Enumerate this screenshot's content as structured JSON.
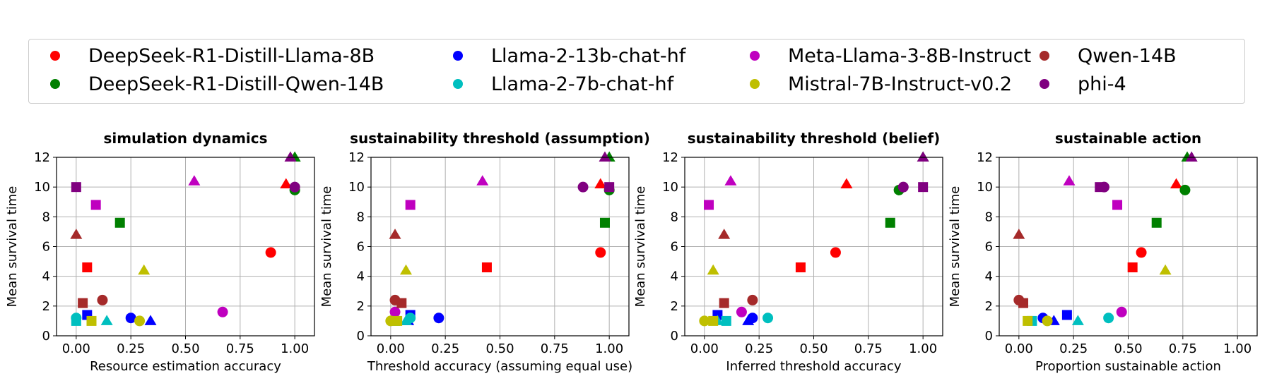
{
  "legend": {
    "items": [
      {
        "label": "DeepSeek-R1-Distill-Llama-8B",
        "color": "#ff0000"
      },
      {
        "label": "DeepSeek-R1-Distill-Qwen-14B",
        "color": "#008000"
      },
      {
        "label": "Llama-2-13b-chat-hf",
        "color": "#0000ff"
      },
      {
        "label": "Llama-2-7b-chat-hf",
        "color": "#00bfbf"
      },
      {
        "label": "Meta-Llama-3-8B-Instruct",
        "color": "#bf00bf"
      },
      {
        "label": "Mistral-7B-Instruct-v0.2",
        "color": "#bfbf00"
      },
      {
        "label": "Qwen-14B",
        "color": "#a52a2a"
      },
      {
        "label": "phi-4",
        "color": "#800080"
      }
    ]
  },
  "chart_data": [
    {
      "type": "scatter",
      "title": "simulation dynamics",
      "xlabel": "Resource estimation accuracy",
      "ylabel": "Mean survival time",
      "xlim": [
        -0.09,
        1.09
      ],
      "ylim": [
        0,
        12
      ],
      "xticks": [
        "0.00",
        "0.25",
        "0.50",
        "0.75",
        "1.00"
      ],
      "yticks": [
        "0",
        "2",
        "4",
        "6",
        "8",
        "10",
        "12"
      ],
      "grid": true,
      "points": [
        {
          "model": "DeepSeek-R1-Distill-Llama-8B",
          "marker": "circle",
          "x": 0.89,
          "y": 5.6
        },
        {
          "model": "DeepSeek-R1-Distill-Llama-8B",
          "marker": "square",
          "x": 0.05,
          "y": 4.6
        },
        {
          "model": "DeepSeek-R1-Distill-Llama-8B",
          "marker": "triangle",
          "x": 0.96,
          "y": 10.2
        },
        {
          "model": "DeepSeek-R1-Distill-Qwen-14B",
          "marker": "circle",
          "x": 1.0,
          "y": 9.8
        },
        {
          "model": "DeepSeek-R1-Distill-Qwen-14B",
          "marker": "square",
          "x": 0.2,
          "y": 7.6
        },
        {
          "model": "DeepSeek-R1-Distill-Qwen-14B",
          "marker": "triangle",
          "x": 1.0,
          "y": 12.0
        },
        {
          "model": "Llama-2-13b-chat-hf",
          "marker": "circle",
          "x": 0.25,
          "y": 1.2
        },
        {
          "model": "Llama-2-13b-chat-hf",
          "marker": "square",
          "x": 0.05,
          "y": 1.4
        },
        {
          "model": "Llama-2-13b-chat-hf",
          "marker": "triangle",
          "x": 0.34,
          "y": 1.0
        },
        {
          "model": "Llama-2-7b-chat-hf",
          "marker": "circle",
          "x": 0.0,
          "y": 1.2
        },
        {
          "model": "Llama-2-7b-chat-hf",
          "marker": "square",
          "x": 0.0,
          "y": 1.0
        },
        {
          "model": "Llama-2-7b-chat-hf",
          "marker": "triangle",
          "x": 0.14,
          "y": 1.0
        },
        {
          "model": "Meta-Llama-3-8B-Instruct",
          "marker": "circle",
          "x": 0.67,
          "y": 1.6
        },
        {
          "model": "Meta-Llama-3-8B-Instruct",
          "marker": "square",
          "x": 0.09,
          "y": 8.8
        },
        {
          "model": "Meta-Llama-3-8B-Instruct",
          "marker": "triangle",
          "x": 0.54,
          "y": 10.4
        },
        {
          "model": "Mistral-7B-Instruct-v0.2",
          "marker": "circle",
          "x": 0.29,
          "y": 1.0
        },
        {
          "model": "Mistral-7B-Instruct-v0.2",
          "marker": "square",
          "x": 0.07,
          "y": 1.0
        },
        {
          "model": "Mistral-7B-Instruct-v0.2",
          "marker": "triangle",
          "x": 0.31,
          "y": 4.4
        },
        {
          "model": "Qwen-14B",
          "marker": "circle",
          "x": 0.12,
          "y": 2.4
        },
        {
          "model": "Qwen-14B",
          "marker": "square",
          "x": 0.03,
          "y": 2.2
        },
        {
          "model": "Qwen-14B",
          "marker": "triangle",
          "x": 0.0,
          "y": 6.8
        },
        {
          "model": "phi-4",
          "marker": "circle",
          "x": 1.0,
          "y": 10.0
        },
        {
          "model": "phi-4",
          "marker": "square",
          "x": 0.0,
          "y": 10.0
        },
        {
          "model": "phi-4",
          "marker": "triangle",
          "x": 0.98,
          "y": 12.0
        }
      ]
    },
    {
      "type": "scatter",
      "title": "sustainability threshold (assumption)",
      "xlabel": "Threshold accuracy (assuming equal use)",
      "ylabel": "Mean survival time",
      "xlim": [
        -0.09,
        1.09
      ],
      "ylim": [
        0,
        12
      ],
      "xticks": [
        "0.00",
        "0.25",
        "0.50",
        "0.75",
        "1.00"
      ],
      "yticks": [
        "0",
        "2",
        "4",
        "6",
        "8",
        "10",
        "12"
      ],
      "grid": true,
      "points": [
        {
          "model": "DeepSeek-R1-Distill-Llama-8B",
          "marker": "circle",
          "x": 0.96,
          "y": 5.6
        },
        {
          "model": "DeepSeek-R1-Distill-Llama-8B",
          "marker": "square",
          "x": 0.44,
          "y": 4.6
        },
        {
          "model": "DeepSeek-R1-Distill-Llama-8B",
          "marker": "triangle",
          "x": 0.96,
          "y": 10.2
        },
        {
          "model": "DeepSeek-R1-Distill-Qwen-14B",
          "marker": "circle",
          "x": 1.0,
          "y": 9.8
        },
        {
          "model": "DeepSeek-R1-Distill-Qwen-14B",
          "marker": "square",
          "x": 0.98,
          "y": 7.6
        },
        {
          "model": "DeepSeek-R1-Distill-Qwen-14B",
          "marker": "triangle",
          "x": 1.0,
          "y": 12.0
        },
        {
          "model": "Llama-2-13b-chat-hf",
          "marker": "circle",
          "x": 0.22,
          "y": 1.2
        },
        {
          "model": "Llama-2-13b-chat-hf",
          "marker": "square",
          "x": 0.09,
          "y": 1.4
        },
        {
          "model": "Llama-2-13b-chat-hf",
          "marker": "triangle",
          "x": 0.08,
          "y": 1.0
        },
        {
          "model": "Llama-2-7b-chat-hf",
          "marker": "circle",
          "x": 0.09,
          "y": 1.2
        },
        {
          "model": "Llama-2-7b-chat-hf",
          "marker": "square",
          "x": 0.02,
          "y": 1.0
        },
        {
          "model": "Llama-2-7b-chat-hf",
          "marker": "triangle",
          "x": 0.07,
          "y": 1.0
        },
        {
          "model": "Meta-Llama-3-8B-Instruct",
          "marker": "circle",
          "x": 0.02,
          "y": 1.6
        },
        {
          "model": "Meta-Llama-3-8B-Instruct",
          "marker": "square",
          "x": 0.09,
          "y": 8.8
        },
        {
          "model": "Meta-Llama-3-8B-Instruct",
          "marker": "triangle",
          "x": 0.42,
          "y": 10.4
        },
        {
          "model": "Mistral-7B-Instruct-v0.2",
          "marker": "circle",
          "x": 0.0,
          "y": 1.0
        },
        {
          "model": "Mistral-7B-Instruct-v0.2",
          "marker": "square",
          "x": 0.03,
          "y": 1.0
        },
        {
          "model": "Mistral-7B-Instruct-v0.2",
          "marker": "triangle",
          "x": 0.07,
          "y": 4.4
        },
        {
          "model": "Qwen-14B",
          "marker": "circle",
          "x": 0.02,
          "y": 2.4
        },
        {
          "model": "Qwen-14B",
          "marker": "square",
          "x": 0.05,
          "y": 2.2
        },
        {
          "model": "Qwen-14B",
          "marker": "triangle",
          "x": 0.02,
          "y": 6.8
        },
        {
          "model": "phi-4",
          "marker": "circle",
          "x": 0.88,
          "y": 10.0
        },
        {
          "model": "phi-4",
          "marker": "square",
          "x": 1.0,
          "y": 10.0
        },
        {
          "model": "phi-4",
          "marker": "triangle",
          "x": 0.98,
          "y": 12.0
        }
      ]
    },
    {
      "type": "scatter",
      "title": "sustainability threshold (belief)",
      "xlabel": "Inferred threshold accuracy",
      "ylabel": "Mean survival time",
      "xlim": [
        -0.09,
        1.09
      ],
      "ylim": [
        0,
        12
      ],
      "xticks": [
        "0.00",
        "0.25",
        "0.50",
        "0.75",
        "1.00"
      ],
      "yticks": [
        "0",
        "2",
        "4",
        "6",
        "8",
        "10",
        "12"
      ],
      "grid": true,
      "points": [
        {
          "model": "DeepSeek-R1-Distill-Llama-8B",
          "marker": "circle",
          "x": 0.6,
          "y": 5.6
        },
        {
          "model": "DeepSeek-R1-Distill-Llama-8B",
          "marker": "square",
          "x": 0.44,
          "y": 4.6
        },
        {
          "model": "DeepSeek-R1-Distill-Llama-8B",
          "marker": "triangle",
          "x": 0.65,
          "y": 10.2
        },
        {
          "model": "DeepSeek-R1-Distill-Qwen-14B",
          "marker": "circle",
          "x": 0.89,
          "y": 9.8
        },
        {
          "model": "DeepSeek-R1-Distill-Qwen-14B",
          "marker": "square",
          "x": 0.85,
          "y": 7.6
        },
        {
          "model": "DeepSeek-R1-Distill-Qwen-14B",
          "marker": "triangle",
          "x": 1.0,
          "y": 12.0
        },
        {
          "model": "Llama-2-13b-chat-hf",
          "marker": "circle",
          "x": 0.22,
          "y": 1.2
        },
        {
          "model": "Llama-2-13b-chat-hf",
          "marker": "square",
          "x": 0.06,
          "y": 1.4
        },
        {
          "model": "Llama-2-13b-chat-hf",
          "marker": "triangle",
          "x": 0.2,
          "y": 1.0
        },
        {
          "model": "Llama-2-7b-chat-hf",
          "marker": "circle",
          "x": 0.29,
          "y": 1.2
        },
        {
          "model": "Llama-2-7b-chat-hf",
          "marker": "square",
          "x": 0.1,
          "y": 1.0
        },
        {
          "model": "Llama-2-7b-chat-hf",
          "marker": "triangle",
          "x": 0.06,
          "y": 1.0
        },
        {
          "model": "Meta-Llama-3-8B-Instruct",
          "marker": "circle",
          "x": 0.17,
          "y": 1.6
        },
        {
          "model": "Meta-Llama-3-8B-Instruct",
          "marker": "square",
          "x": 0.02,
          "y": 8.8
        },
        {
          "model": "Meta-Llama-3-8B-Instruct",
          "marker": "triangle",
          "x": 0.12,
          "y": 10.4
        },
        {
          "model": "Mistral-7B-Instruct-v0.2",
          "marker": "circle",
          "x": 0.0,
          "y": 1.0
        },
        {
          "model": "Mistral-7B-Instruct-v0.2",
          "marker": "square",
          "x": 0.04,
          "y": 1.0
        },
        {
          "model": "Mistral-7B-Instruct-v0.2",
          "marker": "triangle",
          "x": 0.04,
          "y": 4.4
        },
        {
          "model": "Qwen-14B",
          "marker": "circle",
          "x": 0.22,
          "y": 2.4
        },
        {
          "model": "Qwen-14B",
          "marker": "square",
          "x": 0.09,
          "y": 2.2
        },
        {
          "model": "Qwen-14B",
          "marker": "triangle",
          "x": 0.09,
          "y": 6.8
        },
        {
          "model": "phi-4",
          "marker": "circle",
          "x": 0.91,
          "y": 10.0
        },
        {
          "model": "phi-4",
          "marker": "square",
          "x": 1.0,
          "y": 10.0
        },
        {
          "model": "phi-4",
          "marker": "triangle",
          "x": 1.0,
          "y": 12.0
        }
      ]
    },
    {
      "type": "scatter",
      "title": "sustainable action",
      "xlabel": "Proportion sustainable action",
      "ylabel": "Mean survival time",
      "xlim": [
        -0.09,
        1.09
      ],
      "ylim": [
        0,
        12
      ],
      "xticks": [
        "0.00",
        "0.25",
        "0.50",
        "0.75",
        "1.00"
      ],
      "yticks": [
        "0",
        "2",
        "4",
        "6",
        "8",
        "10",
        "12"
      ],
      "grid": true,
      "points": [
        {
          "model": "DeepSeek-R1-Distill-Llama-8B",
          "marker": "circle",
          "x": 0.56,
          "y": 5.6
        },
        {
          "model": "DeepSeek-R1-Distill-Llama-8B",
          "marker": "square",
          "x": 0.52,
          "y": 4.6
        },
        {
          "model": "DeepSeek-R1-Distill-Llama-8B",
          "marker": "triangle",
          "x": 0.72,
          "y": 10.2
        },
        {
          "model": "DeepSeek-R1-Distill-Qwen-14B",
          "marker": "circle",
          "x": 0.76,
          "y": 9.8
        },
        {
          "model": "DeepSeek-R1-Distill-Qwen-14B",
          "marker": "square",
          "x": 0.63,
          "y": 7.6
        },
        {
          "model": "DeepSeek-R1-Distill-Qwen-14B",
          "marker": "triangle",
          "x": 0.77,
          "y": 12.0
        },
        {
          "model": "Llama-2-13b-chat-hf",
          "marker": "circle",
          "x": 0.11,
          "y": 1.2
        },
        {
          "model": "Llama-2-13b-chat-hf",
          "marker": "square",
          "x": 0.22,
          "y": 1.4
        },
        {
          "model": "Llama-2-13b-chat-hf",
          "marker": "triangle",
          "x": 0.16,
          "y": 1.0
        },
        {
          "model": "Llama-2-7b-chat-hf",
          "marker": "circle",
          "x": 0.41,
          "y": 1.2
        },
        {
          "model": "Llama-2-7b-chat-hf",
          "marker": "square",
          "x": 0.06,
          "y": 1.0
        },
        {
          "model": "Llama-2-7b-chat-hf",
          "marker": "triangle",
          "x": 0.27,
          "y": 1.0
        },
        {
          "model": "Meta-Llama-3-8B-Instruct",
          "marker": "circle",
          "x": 0.47,
          "y": 1.6
        },
        {
          "model": "Meta-Llama-3-8B-Instruct",
          "marker": "square",
          "x": 0.45,
          "y": 8.8
        },
        {
          "model": "Meta-Llama-3-8B-Instruct",
          "marker": "triangle",
          "x": 0.23,
          "y": 10.4
        },
        {
          "model": "Mistral-7B-Instruct-v0.2",
          "marker": "circle",
          "x": 0.13,
          "y": 1.0
        },
        {
          "model": "Mistral-7B-Instruct-v0.2",
          "marker": "square",
          "x": 0.04,
          "y": 1.0
        },
        {
          "model": "Mistral-7B-Instruct-v0.2",
          "marker": "triangle",
          "x": 0.67,
          "y": 4.4
        },
        {
          "model": "Qwen-14B",
          "marker": "circle",
          "x": 0.0,
          "y": 2.4
        },
        {
          "model": "Qwen-14B",
          "marker": "square",
          "x": 0.02,
          "y": 2.2
        },
        {
          "model": "Qwen-14B",
          "marker": "triangle",
          "x": 0.0,
          "y": 6.8
        },
        {
          "model": "phi-4",
          "marker": "circle",
          "x": 0.39,
          "y": 10.0
        },
        {
          "model": "phi-4",
          "marker": "square",
          "x": 0.37,
          "y": 10.0
        },
        {
          "model": "phi-4",
          "marker": "triangle",
          "x": 0.79,
          "y": 12.0
        }
      ]
    }
  ]
}
